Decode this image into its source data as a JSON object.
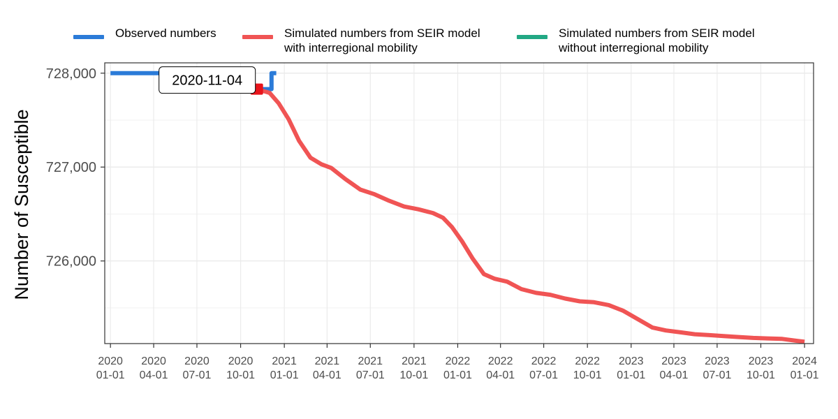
{
  "chart_data": {
    "type": "line",
    "title": "",
    "xlabel": "",
    "ylabel": "Number of Susceptible",
    "grid": true,
    "legend_position": "top",
    "ylim": [
      725120,
      728110
    ],
    "xlim": [
      "2019-12-20",
      "2024-01-20"
    ],
    "y_ticks": [
      {
        "value": 726000,
        "label": "726,000"
      },
      {
        "value": 727000,
        "label": "727,000"
      },
      {
        "value": 728000,
        "label": "728,000"
      }
    ],
    "x_ticks": [
      {
        "date": "2020-01-01",
        "line1": "2020",
        "line2": "01-01"
      },
      {
        "date": "2020-04-01",
        "line1": "2020",
        "line2": "04-01"
      },
      {
        "date": "2020-07-01",
        "line1": "2020",
        "line2": "07-01"
      },
      {
        "date": "2020-10-01",
        "line1": "2020",
        "line2": "10-01"
      },
      {
        "date": "2021-01-01",
        "line1": "2021",
        "line2": "01-01"
      },
      {
        "date": "2021-04-01",
        "line1": "2021",
        "line2": "04-01"
      },
      {
        "date": "2021-07-01",
        "line1": "2021",
        "line2": "07-01"
      },
      {
        "date": "2021-10-01",
        "line1": "2021",
        "line2": "10-01"
      },
      {
        "date": "2022-01-01",
        "line1": "2022",
        "line2": "01-01"
      },
      {
        "date": "2022-04-01",
        "line1": "2022",
        "line2": "04-01"
      },
      {
        "date": "2022-07-01",
        "line1": "2022",
        "line2": "07-01"
      },
      {
        "date": "2022-10-01",
        "line1": "2022",
        "line2": "10-01"
      },
      {
        "date": "2023-01-01",
        "line1": "2023",
        "line2": "01-01"
      },
      {
        "date": "2023-04-01",
        "line1": "2023",
        "line2": "04-01"
      },
      {
        "date": "2023-07-01",
        "line1": "2023",
        "line2": "07-01"
      },
      {
        "date": "2023-10-01",
        "line1": "2023",
        "line2": "10-01"
      },
      {
        "date": "2024-01-01",
        "line1": "2024",
        "line2": "01-01"
      }
    ],
    "series": [
      {
        "name": "Observed numbers",
        "color": "#2B7BD8",
        "step": true,
        "points": [
          {
            "x": "2020-01-01",
            "y": 728000
          },
          {
            "x": "2020-10-25",
            "y": 728000
          },
          {
            "x": "2020-10-25",
            "y": 727830
          },
          {
            "x": "2020-12-05",
            "y": 727830
          },
          {
            "x": "2020-12-05",
            "y": 728000
          },
          {
            "x": "2020-12-15",
            "y": 728000
          }
        ]
      },
      {
        "name": "Simulated numbers from SEIR model with interregional mobility",
        "color": "#F05454",
        "step": false,
        "points": [
          {
            "x": "2020-11-04",
            "y": 727830
          },
          {
            "x": "2020-12-01",
            "y": 727790
          },
          {
            "x": "2020-12-20",
            "y": 727680
          },
          {
            "x": "2021-01-10",
            "y": 727510
          },
          {
            "x": "2021-02-01",
            "y": 727280
          },
          {
            "x": "2021-02-25",
            "y": 727100
          },
          {
            "x": "2021-03-20",
            "y": 727030
          },
          {
            "x": "2021-04-10",
            "y": 726990
          },
          {
            "x": "2021-05-10",
            "y": 726870
          },
          {
            "x": "2021-06-10",
            "y": 726760
          },
          {
            "x": "2021-07-10",
            "y": 726710
          },
          {
            "x": "2021-08-10",
            "y": 726640
          },
          {
            "x": "2021-09-10",
            "y": 726580
          },
          {
            "x": "2021-10-10",
            "y": 726550
          },
          {
            "x": "2021-11-10",
            "y": 726510
          },
          {
            "x": "2021-12-01",
            "y": 726460
          },
          {
            "x": "2021-12-20",
            "y": 726360
          },
          {
            "x": "2022-01-10",
            "y": 726210
          },
          {
            "x": "2022-02-01",
            "y": 726030
          },
          {
            "x": "2022-02-25",
            "y": 725860
          },
          {
            "x": "2022-03-20",
            "y": 725810
          },
          {
            "x": "2022-04-15",
            "y": 725780
          },
          {
            "x": "2022-05-15",
            "y": 725700
          },
          {
            "x": "2022-06-15",
            "y": 725660
          },
          {
            "x": "2022-07-15",
            "y": 725640
          },
          {
            "x": "2022-08-15",
            "y": 725600
          },
          {
            "x": "2022-09-15",
            "y": 725570
          },
          {
            "x": "2022-10-15",
            "y": 725560
          },
          {
            "x": "2022-11-15",
            "y": 725530
          },
          {
            "x": "2022-12-15",
            "y": 725470
          },
          {
            "x": "2023-01-15",
            "y": 725380
          },
          {
            "x": "2023-02-15",
            "y": 725290
          },
          {
            "x": "2023-03-15",
            "y": 725260
          },
          {
            "x": "2023-04-15",
            "y": 725240
          },
          {
            "x": "2023-05-15",
            "y": 725220
          },
          {
            "x": "2023-06-15",
            "y": 725210
          },
          {
            "x": "2023-07-15",
            "y": 725200
          },
          {
            "x": "2023-08-15",
            "y": 725190
          },
          {
            "x": "2023-09-15",
            "y": 725180
          },
          {
            "x": "2023-10-15",
            "y": 725175
          },
          {
            "x": "2023-11-15",
            "y": 725170
          },
          {
            "x": "2023-12-15",
            "y": 725150
          },
          {
            "x": "2024-01-01",
            "y": 725140
          }
        ]
      },
      {
        "name": "Simulated numbers from SEIR model without interregional mobility",
        "color": "#22A884",
        "step": false,
        "points": []
      }
    ],
    "annotations": [
      {
        "x": "2020-11-04",
        "y": 727830,
        "text": "2020-11-04",
        "marker_color": "#E8141B"
      }
    ]
  },
  "legend": {
    "items": [
      {
        "line1": "Observed numbers",
        "line2": "",
        "color": "#2B7BD8"
      },
      {
        "line1": "Simulated numbers from SEIR model",
        "line2": "with interregional mobility",
        "color": "#F05454"
      },
      {
        "line1": "Simulated numbers from SEIR model",
        "line2": "without interregional mobility",
        "color": "#22A884"
      }
    ]
  }
}
